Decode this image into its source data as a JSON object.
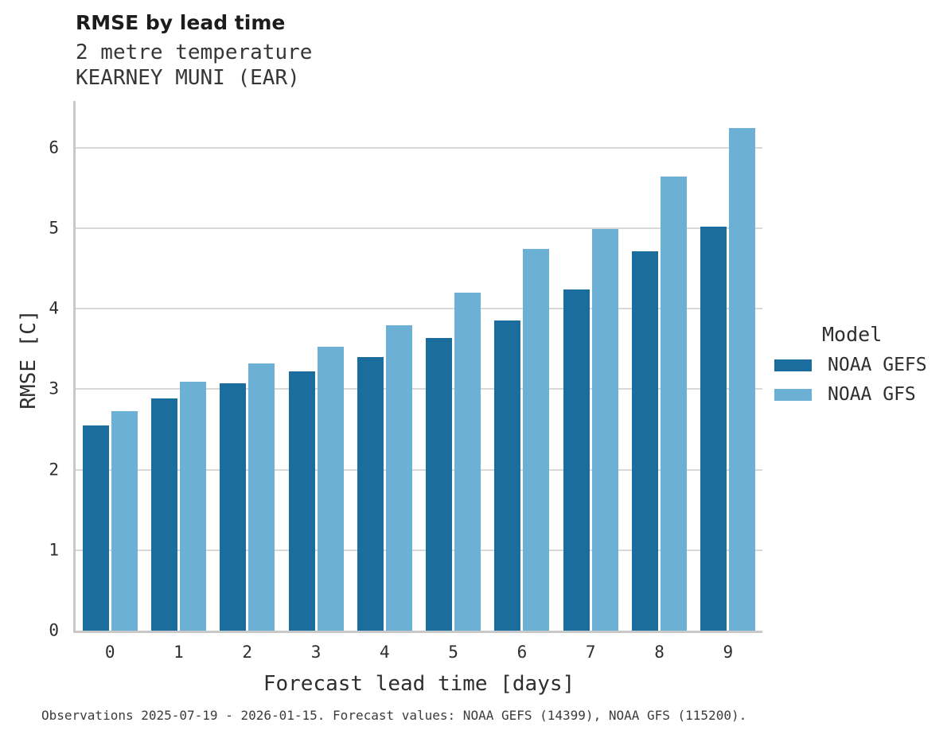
{
  "header": {
    "title": "RMSE by lead time",
    "subtitle_variable": "2 metre temperature",
    "subtitle_station": "KEARNEY MUNI (EAR)"
  },
  "chart_data": {
    "type": "bar",
    "title": "RMSE by lead time",
    "xlabel": "Forecast lead time [days]",
    "ylabel": "RMSE [C]",
    "categories": [
      "0",
      "1",
      "2",
      "3",
      "4",
      "5",
      "6",
      "7",
      "8",
      "9"
    ],
    "series": [
      {
        "name": "NOAA GEFS",
        "color": "#1b6d9e",
        "values": [
          2.55,
          2.89,
          3.07,
          3.22,
          3.4,
          3.64,
          3.85,
          4.24,
          4.71,
          5.02
        ]
      },
      {
        "name": "NOAA GFS",
        "color": "#6cb1d5",
        "values": [
          2.73,
          3.09,
          3.32,
          3.53,
          3.79,
          4.2,
          4.74,
          4.99,
          5.64,
          6.24
        ]
      }
    ],
    "ylim": [
      0,
      6.58
    ],
    "yticks": [
      0,
      1,
      2,
      3,
      4,
      5,
      6
    ],
    "grid": "horizontal",
    "legend": {
      "title": "Model",
      "position": "right"
    }
  },
  "footer": {
    "note": "Observations 2025-07-19 - 2026-01-15. Forecast values: NOAA GEFS (14399), NOAA GFS (115200)."
  }
}
